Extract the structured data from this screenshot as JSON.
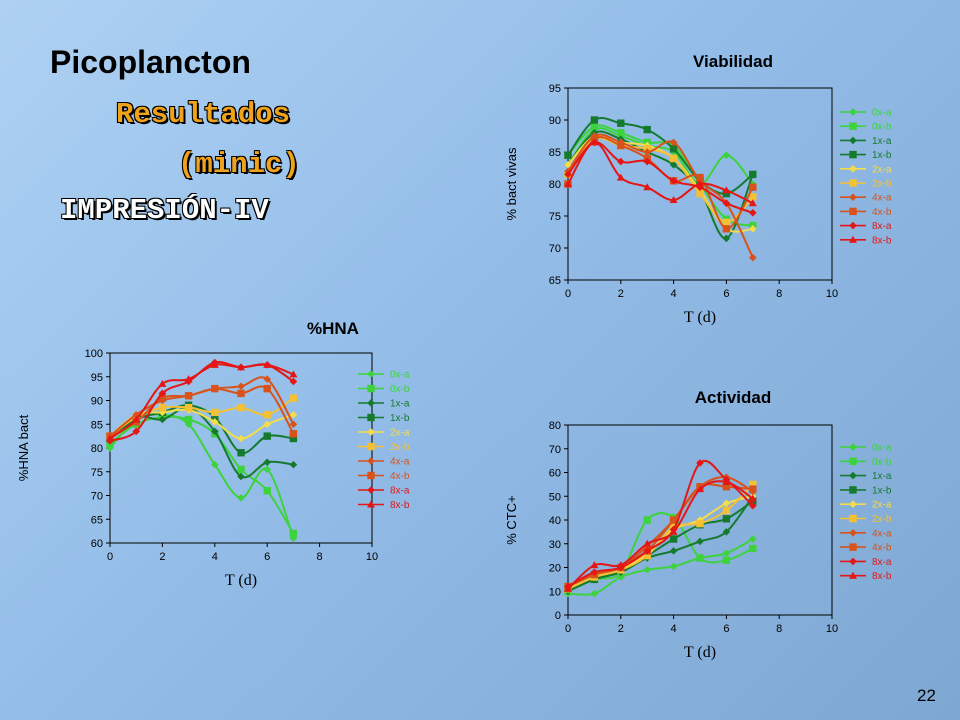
{
  "slide": {
    "title": "Picoplancton",
    "subtitle_1": "Resultados",
    "subtitle_2": "(minic)",
    "subtitle_3": "IMPRESIÓN-IV",
    "page_number": "22"
  },
  "series_styles": [
    {
      "name": "0x-a",
      "color": "#3cd33c",
      "marker": "diamond"
    },
    {
      "name": "0x-b",
      "color": "#3cd33c",
      "marker": "square"
    },
    {
      "name": "1x-a",
      "color": "#167a2e",
      "marker": "diamond"
    },
    {
      "name": "1x-b",
      "color": "#167a2e",
      "marker": "square"
    },
    {
      "name": "2x-a",
      "color": "#f5dc4a",
      "marker": "diamond"
    },
    {
      "name": "2x-b",
      "color": "#f5c033",
      "marker": "square"
    },
    {
      "name": "4x-a",
      "color": "#d8531b",
      "marker": "diamond"
    },
    {
      "name": "4x-b",
      "color": "#d8531b",
      "marker": "square"
    },
    {
      "name": "8x-a",
      "color": "#e41616",
      "marker": "diamond"
    },
    {
      "name": "8x-b",
      "color": "#e41616",
      "marker": "triangle"
    }
  ],
  "chart_data": [
    {
      "id": "viabilidad",
      "type": "line",
      "title": "Viabilidad",
      "xlabel": "T (d)",
      "ylabel": "% bact vivas",
      "xlim": [
        0,
        10
      ],
      "ylim": [
        65,
        95
      ],
      "xticks": [
        0,
        2,
        4,
        6,
        8,
        10
      ],
      "yticks": [
        65,
        70,
        75,
        80,
        85,
        90,
        95
      ],
      "legend": "right",
      "x": [
        0,
        1,
        2,
        3,
        4,
        5,
        6,
        7
      ],
      "series": [
        {
          "name": "0x-a",
          "values": [
            83,
            88.5,
            87.5,
            86,
            85,
            80,
            84.5,
            80
          ]
        },
        {
          "name": "0x-b",
          "values": [
            84.5,
            89,
            88,
            86.5,
            86,
            80,
            74.5,
            73.5
          ]
        },
        {
          "name": "1x-a",
          "values": [
            83,
            88,
            87,
            85,
            83,
            79,
            71.5,
            81.5
          ]
        },
        {
          "name": "1x-b",
          "values": [
            84.5,
            90,
            89.5,
            88.5,
            85.5,
            80.5,
            78.5,
            81.5
          ]
        },
        {
          "name": "2x-a",
          "values": [
            83,
            87.5,
            86.5,
            86,
            84,
            79,
            73,
            73
          ]
        },
        {
          "name": "2x-b",
          "values": [
            81.5,
            87,
            86,
            85.5,
            84,
            78.5,
            74,
            78
          ]
        },
        {
          "name": "4x-a",
          "values": [
            82,
            87.5,
            86.5,
            85,
            86.5,
            80.5,
            77,
            68.5
          ]
        },
        {
          "name": "4x-b",
          "values": [
            80,
            87,
            86,
            84,
            80.5,
            81,
            73,
            79.5
          ]
        },
        {
          "name": "8x-a",
          "values": [
            81.5,
            86.5,
            83.5,
            83.5,
            80.5,
            79.5,
            77,
            75.5
          ]
        },
        {
          "name": "8x-b",
          "values": [
            80,
            86.5,
            81,
            79.5,
            77.5,
            80,
            79,
            77
          ]
        }
      ]
    },
    {
      "id": "hna",
      "type": "line",
      "title": "%HNA",
      "xlabel": "T (d)",
      "ylabel": "%HNA bact",
      "xlim": [
        0,
        10
      ],
      "ylim": [
        60,
        100
      ],
      "xticks": [
        0,
        2,
        4,
        6,
        8,
        10
      ],
      "yticks": [
        60,
        65,
        70,
        75,
        80,
        85,
        90,
        95,
        100
      ],
      "legend": "right",
      "x": [
        0,
        1,
        2,
        3,
        4,
        5,
        6,
        7
      ],
      "series": [
        {
          "name": "0x-a",
          "values": [
            80,
            86,
            87,
            85,
            76.5,
            69.5,
            75.5,
            61
          ]
        },
        {
          "name": "0x-b",
          "values": [
            81,
            85,
            86.5,
            86,
            83,
            75.5,
            71,
            62
          ]
        },
        {
          "name": "1x-a",
          "values": [
            82,
            86.5,
            86,
            88.5,
            83.5,
            74,
            77,
            76.5
          ]
        },
        {
          "name": "1x-b",
          "values": [
            82,
            86,
            87.5,
            89,
            86.5,
            79,
            82.5,
            82
          ]
        },
        {
          "name": "2x-a",
          "values": [
            82.5,
            87,
            87.5,
            88,
            85.5,
            82,
            85,
            87
          ]
        },
        {
          "name": "2x-b",
          "values": [
            82.5,
            86.5,
            88.5,
            88.5,
            87.5,
            88.5,
            87,
            90.5
          ]
        },
        {
          "name": "4x-a",
          "values": [
            82.5,
            87,
            90,
            91,
            92.5,
            93,
            94.5,
            85
          ]
        },
        {
          "name": "4x-b",
          "values": [
            82.5,
            85.5,
            90.5,
            91,
            92.5,
            91.5,
            92.5,
            83
          ]
        },
        {
          "name": "8x-a",
          "values": [
            81.5,
            83.5,
            91.5,
            94,
            98,
            97,
            97.5,
            94
          ]
        },
        {
          "name": "8x-b",
          "values": [
            82,
            86,
            93.5,
            94.5,
            97.5,
            97,
            97.5,
            95.5
          ]
        }
      ]
    },
    {
      "id": "actividad",
      "type": "line",
      "title": "Actividad",
      "xlabel": "T (d)",
      "ylabel": "% CTC+",
      "xlim": [
        0,
        10
      ],
      "ylim": [
        0,
        80
      ],
      "xticks": [
        0,
        2,
        4,
        6,
        8,
        10
      ],
      "yticks": [
        0,
        10,
        20,
        30,
        40,
        50,
        60,
        70,
        80
      ],
      "legend": "right",
      "x": [
        0,
        1,
        2,
        3,
        4,
        5,
        6,
        7
      ],
      "series": [
        {
          "name": "0x-a",
          "values": [
            9,
            9,
            16,
            19,
            20.5,
            24,
            26,
            32
          ]
        },
        {
          "name": "0x-b",
          "values": [
            10,
            15,
            18,
            40,
            41,
            24,
            23,
            28
          ]
        },
        {
          "name": "1x-a",
          "values": [
            10,
            15,
            18,
            24,
            27,
            31,
            35,
            50
          ]
        },
        {
          "name": "1x-b",
          "values": [
            11,
            15,
            19,
            25,
            32,
            38,
            40.5,
            48
          ]
        },
        {
          "name": "2x-a",
          "values": [
            11,
            16,
            19,
            26,
            36,
            40,
            47,
            50
          ]
        },
        {
          "name": "2x-b",
          "values": [
            11,
            16,
            19,
            25,
            37,
            38.5,
            44,
            55
          ]
        },
        {
          "name": "4x-a",
          "values": [
            12,
            17,
            20,
            29,
            40,
            54,
            58,
            52
          ]
        },
        {
          "name": "4x-b",
          "values": [
            12,
            17,
            20,
            27,
            40,
            54,
            54,
            53
          ]
        },
        {
          "name": "8x-a",
          "values": [
            12,
            18,
            20,
            27,
            36,
            64,
            57,
            46
          ]
        },
        {
          "name": "8x-b",
          "values": [
            11,
            21,
            21,
            30,
            35,
            53,
            56,
            49
          ]
        }
      ]
    }
  ]
}
